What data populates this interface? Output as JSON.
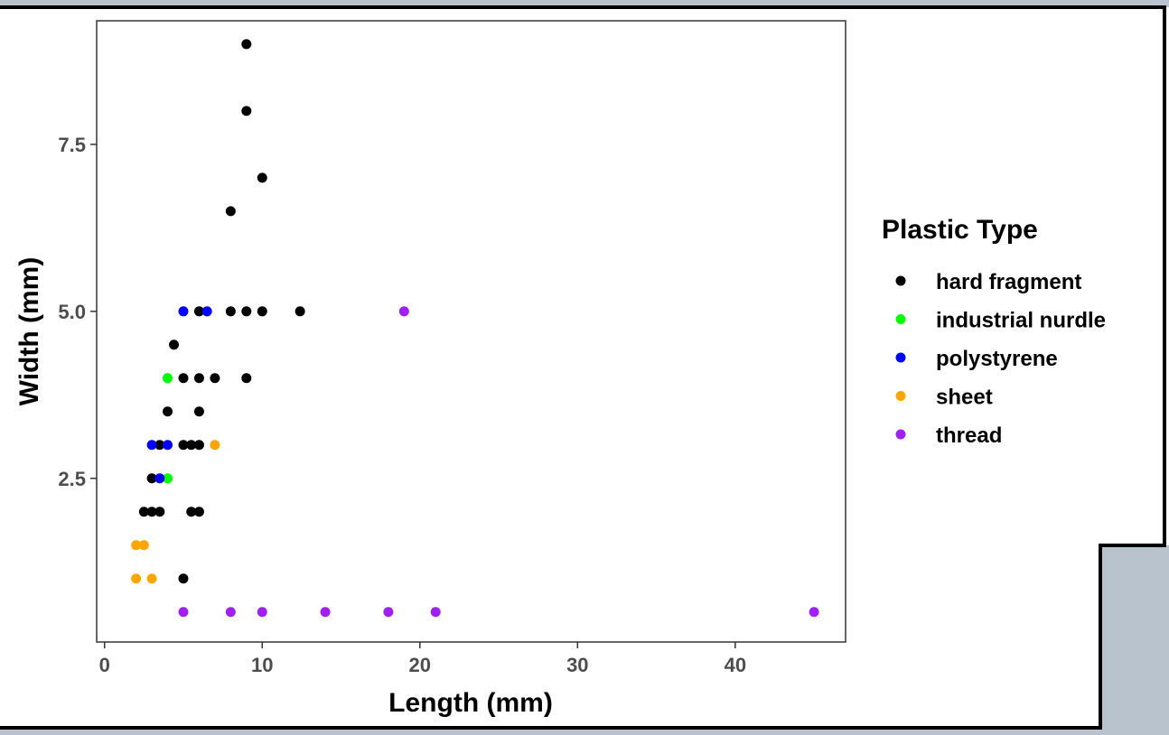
{
  "chart_data": {
    "type": "scatter",
    "xlabel": "Length (mm)",
    "ylabel": "Width (mm)",
    "xlim": [
      -0.5,
      47
    ],
    "ylim": [
      0.05,
      9.35
    ],
    "x_ticks": [
      0,
      10,
      20,
      30,
      40
    ],
    "x_tick_labels": [
      "0",
      "10",
      "20",
      "30",
      "40"
    ],
    "y_ticks": [
      2.5,
      5.0,
      7.5
    ],
    "y_tick_labels": [
      "2.5",
      "5.0",
      "7.5"
    ],
    "grid": false,
    "legend": {
      "title": "Plastic Type",
      "position": "right"
    },
    "series": [
      {
        "name": "hard fragment",
        "color": "#000000",
        "points": [
          [
            9,
            9
          ],
          [
            9,
            8
          ],
          [
            10,
            7
          ],
          [
            8,
            6.5
          ],
          [
            6,
            5
          ],
          [
            8,
            5
          ],
          [
            9,
            5
          ],
          [
            10,
            5
          ],
          [
            12.4,
            5
          ],
          [
            4.4,
            4.5
          ],
          [
            5,
            4
          ],
          [
            6,
            4
          ],
          [
            7,
            4
          ],
          [
            9,
            4
          ],
          [
            4,
            3.5
          ],
          [
            6,
            3.5
          ],
          [
            3.5,
            3
          ],
          [
            5,
            3
          ],
          [
            5.5,
            3
          ],
          [
            6,
            3
          ],
          [
            3,
            2.5
          ],
          [
            2.5,
            2
          ],
          [
            3,
            2
          ],
          [
            3.5,
            2
          ],
          [
            5.5,
            2
          ],
          [
            6,
            2
          ],
          [
            5,
            1
          ]
        ]
      },
      {
        "name": "industrial nurdle",
        "color": "#00ff00",
        "points": [
          [
            4,
            4
          ],
          [
            4,
            2.5
          ]
        ]
      },
      {
        "name": "polystyrene",
        "color": "#0000ff",
        "points": [
          [
            5,
            5
          ],
          [
            6.5,
            5
          ],
          [
            3,
            3
          ],
          [
            4,
            3
          ],
          [
            3.5,
            2.5
          ]
        ]
      },
      {
        "name": "sheet",
        "color": "#ffa500",
        "points": [
          [
            7,
            3
          ],
          [
            2,
            1.5
          ],
          [
            2.5,
            1.5
          ],
          [
            2,
            1
          ],
          [
            3,
            1
          ]
        ]
      },
      {
        "name": "thread",
        "color": "#a020f0",
        "points": [
          [
            19,
            5
          ],
          [
            5,
            0.5
          ],
          [
            8,
            0.5
          ],
          [
            10,
            0.5
          ],
          [
            14,
            0.5
          ],
          [
            18,
            0.5
          ],
          [
            21,
            0.5
          ],
          [
            45,
            0.5
          ]
        ]
      }
    ]
  }
}
